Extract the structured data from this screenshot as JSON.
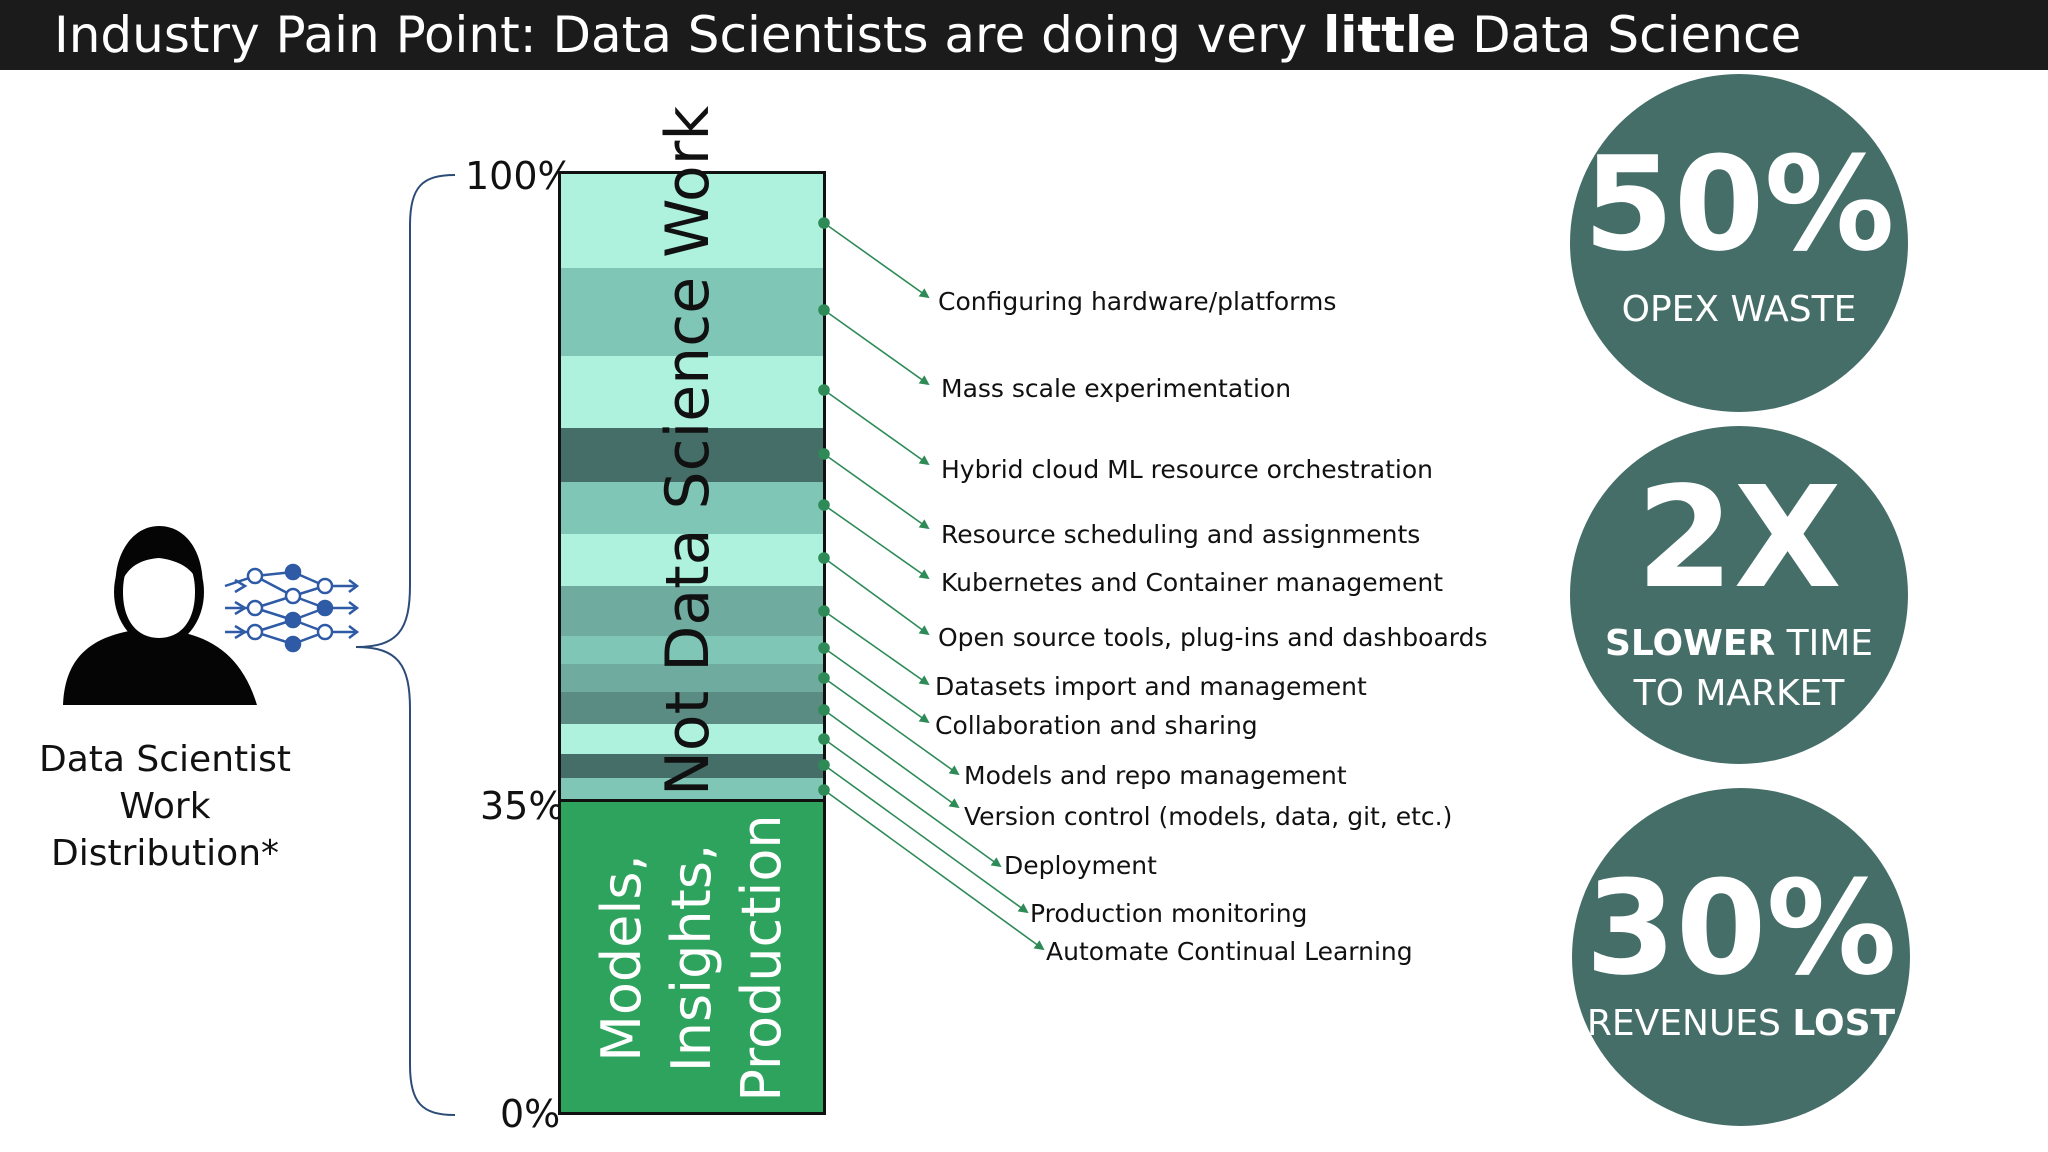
{
  "header": {
    "title_before": "Industry Pain Point: Data Scientists are doing very ",
    "title_bold": "little",
    "title_after": " Data Science"
  },
  "persona": {
    "label_line1": "Data Scientist",
    "label_line2": "Work Distribution*",
    "icon": "person-with-neural-network-icon"
  },
  "axis": {
    "top": "100%",
    "mid": "35%",
    "bottom": "0%"
  },
  "bar": {
    "upper_label": "Not Data Science Work",
    "lower_label_lines": [
      "Models,",
      "Insights,",
      "Production"
    ],
    "upper_share_percent": 65,
    "lower_share_percent": 35,
    "colors": {
      "light": "#aef2de",
      "mid": "#80c6b6",
      "mid2": "#6fab9f",
      "dark": "#456e68",
      "green": "#2ea35d",
      "arrow": "#2e8b57"
    }
  },
  "tasks": [
    "Configuring hardware/platforms",
    "Mass scale experimentation",
    "Hybrid cloud ML resource orchestration",
    "Resource scheduling and assignments",
    "Kubernetes and Container management",
    "Open source tools, plug-ins and dashboards",
    "Datasets import and management",
    "Collaboration and sharing",
    "Models and repo management",
    "Version control (models, data, git, etc.)",
    "Deployment",
    "Production monitoring",
    "Automate Continual Learning"
  ],
  "stats": [
    {
      "value": "50%",
      "line1": "OPEX WASTE",
      "line1_bold": "",
      "line2": "",
      "line2_bold": ""
    },
    {
      "value": "2X",
      "line1": "",
      "line1_bold": "SLOWER",
      "line1_rest": " TIME",
      "line2": "TO MARKET"
    },
    {
      "value": "30%",
      "line1": "REVENUES ",
      "line1_bold": "LOST",
      "line2": ""
    }
  ]
}
